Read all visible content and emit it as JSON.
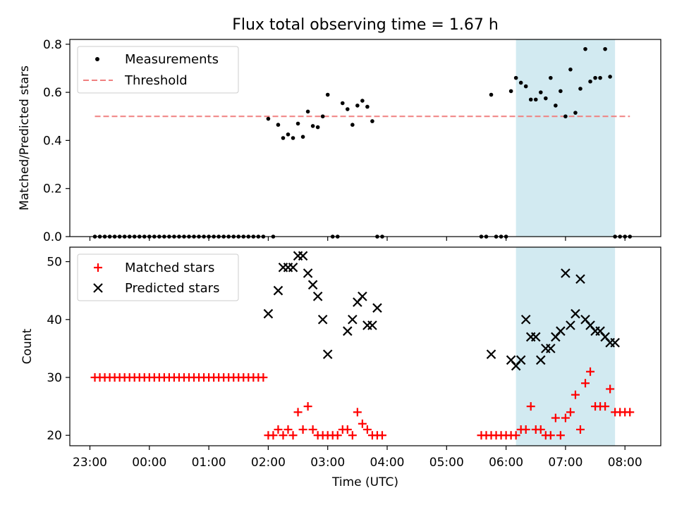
{
  "figure": {
    "title": "Flux total observing time = 1.67 h"
  },
  "chart_data": [
    {
      "type": "scatter",
      "ylabel": "Matched/Predicted stars",
      "xlabel": "",
      "ylim": [
        0,
        0.82
      ],
      "yticks": [
        0.0,
        0.2,
        0.4,
        0.6,
        0.8
      ],
      "ytick_labels": [
        "0.0",
        "0.2",
        "0.4",
        "0.6",
        "0.8"
      ],
      "legend_position": "upper-left",
      "highlight_span": {
        "x0": "06:10",
        "x1": "07:50",
        "color": "#add8e6"
      },
      "series": [
        {
          "name": "Measurements",
          "marker": "dot",
          "color": "#000000",
          "x": [
            "23:05",
            "23:10",
            "23:15",
            "23:20",
            "23:25",
            "23:30",
            "23:35",
            "23:40",
            "23:45",
            "23:50",
            "23:55",
            "00:00",
            "00:05",
            "00:10",
            "00:15",
            "00:20",
            "00:25",
            "00:30",
            "00:35",
            "00:40",
            "00:45",
            "00:50",
            "00:55",
            "01:00",
            "01:05",
            "01:10",
            "01:15",
            "01:20",
            "01:25",
            "01:30",
            "01:35",
            "01:40",
            "01:45",
            "01:50",
            "01:55",
            "02:00",
            "02:05",
            "02:10",
            "02:15",
            "02:20",
            "02:25",
            "02:30",
            "02:35",
            "02:40",
            "02:45",
            "02:50",
            "02:55",
            "03:00",
            "03:05",
            "03:10",
            "03:15",
            "03:20",
            "03:25",
            "03:30",
            "03:35",
            "03:40",
            "03:45",
            "03:50",
            "03:55",
            "05:35",
            "05:40",
            "05:45",
            "05:50",
            "05:55",
            "06:00",
            "06:05",
            "06:10",
            "06:15",
            "06:20",
            "06:25",
            "06:30",
            "06:35",
            "06:40",
            "06:45",
            "06:50",
            "06:55",
            "07:00",
            "07:05",
            "07:10",
            "07:15",
            "07:20",
            "07:25",
            "07:30",
            "07:35",
            "07:40",
            "07:45",
            "07:50",
            "07:55",
            "08:00",
            "08:05"
          ],
          "y": [
            0,
            0,
            0,
            0,
            0,
            0,
            0,
            0,
            0,
            0,
            0,
            0,
            0,
            0,
            0,
            0,
            0,
            0,
            0,
            0,
            0,
            0,
            0,
            0,
            0,
            0,
            0,
            0,
            0,
            0,
            0,
            0,
            0,
            0,
            0,
            0.49,
            0,
            0.465,
            0.41,
            0.425,
            0.41,
            0.47,
            0.415,
            0.52,
            0.46,
            0.455,
            0.5,
            0.59,
            0,
            0,
            0.555,
            0.53,
            0.465,
            0.545,
            0.565,
            0.54,
            0.48,
            0,
            0,
            0,
            0,
            0.59,
            0,
            0,
            0,
            0.605,
            0.66,
            0.64,
            0.625,
            0.57,
            0.57,
            0.6,
            0.575,
            0.66,
            0.545,
            0.605,
            0.5,
            0.695,
            0.515,
            0.615,
            0.78,
            0.645,
            0.66,
            0.66,
            0.78,
            0.665,
            0,
            0,
            0,
            0
          ]
        },
        {
          "name": "Threshold",
          "marker": "dashed-line",
          "color": "#f08080",
          "x": [
            "23:05",
            "08:05"
          ],
          "y": [
            0.5,
            0.5
          ]
        }
      ]
    },
    {
      "type": "scatter",
      "ylabel": "Count",
      "xlabel": "Time (UTC)",
      "ylim": [
        18.2,
        52.5
      ],
      "yticks": [
        20,
        30,
        40,
        50
      ],
      "ytick_labels": [
        "20",
        "30",
        "40",
        "50"
      ],
      "xticks": [
        "23:00",
        "00:00",
        "01:00",
        "02:00",
        "03:00",
        "04:00",
        "05:00",
        "06:00",
        "07:00",
        "08:00"
      ],
      "legend_position": "upper-left",
      "highlight_span": {
        "x0": "06:10",
        "x1": "07:50",
        "color": "#add8e6"
      },
      "series": [
        {
          "name": "Matched stars",
          "marker": "plus",
          "color": "#ff0000",
          "x": [
            "23:05",
            "23:10",
            "23:15",
            "23:20",
            "23:25",
            "23:30",
            "23:35",
            "23:40",
            "23:45",
            "23:50",
            "23:55",
            "00:00",
            "00:05",
            "00:10",
            "00:15",
            "00:20",
            "00:25",
            "00:30",
            "00:35",
            "00:40",
            "00:45",
            "00:50",
            "00:55",
            "01:00",
            "01:05",
            "01:10",
            "01:15",
            "01:20",
            "01:25",
            "01:30",
            "01:35",
            "01:40",
            "01:45",
            "01:50",
            "01:55",
            "02:00",
            "02:05",
            "02:10",
            "02:15",
            "02:20",
            "02:25",
            "02:30",
            "02:35",
            "02:40",
            "02:45",
            "02:50",
            "02:55",
            "03:00",
            "03:05",
            "03:10",
            "03:15",
            "03:20",
            "03:25",
            "03:30",
            "03:35",
            "03:40",
            "03:45",
            "03:50",
            "03:55",
            "05:35",
            "05:40",
            "05:45",
            "05:50",
            "05:55",
            "06:00",
            "06:05",
            "06:10",
            "06:15",
            "06:20",
            "06:25",
            "06:30",
            "06:35",
            "06:40",
            "06:45",
            "06:50",
            "06:55",
            "07:00",
            "07:05",
            "07:10",
            "07:15",
            "07:20",
            "07:25",
            "07:30",
            "07:35",
            "07:40",
            "07:45",
            "07:50",
            "07:55",
            "08:00",
            "08:05"
          ],
          "y": [
            30,
            30,
            30,
            30,
            30,
            30,
            30,
            30,
            30,
            30,
            30,
            30,
            30,
            30,
            30,
            30,
            30,
            30,
            30,
            30,
            30,
            30,
            30,
            30,
            30,
            30,
            30,
            30,
            30,
            30,
            30,
            30,
            30,
            30,
            30,
            20,
            20,
            21,
            20,
            21,
            20,
            24,
            21,
            25,
            21,
            20,
            20,
            20,
            20,
            20,
            21,
            21,
            20,
            24,
            22,
            21,
            20,
            20,
            20,
            20,
            20,
            20,
            20,
            20,
            20,
            20,
            20,
            21,
            21,
            25,
            21,
            21,
            20,
            20,
            23,
            20,
            23,
            24,
            27,
            21,
            29,
            31,
            25,
            25,
            25,
            28,
            24,
            24,
            24,
            24
          ]
        },
        {
          "name": "Predicted stars",
          "marker": "x",
          "color": "#000000",
          "x": [
            "02:00",
            "02:10",
            "02:15",
            "02:20",
            "02:25",
            "02:30",
            "02:35",
            "02:40",
            "02:45",
            "02:50",
            "02:55",
            "03:00",
            "03:20",
            "03:25",
            "03:30",
            "03:35",
            "03:40",
            "03:45",
            "03:50",
            "05:45",
            "06:05",
            "06:10",
            "06:15",
            "06:20",
            "06:25",
            "06:30",
            "06:35",
            "06:40",
            "06:45",
            "06:50",
            "06:55",
            "07:00",
            "07:05",
            "07:10",
            "07:15",
            "07:20",
            "07:25",
            "07:30",
            "07:35",
            "07:40",
            "07:45",
            "07:50"
          ],
          "y": [
            41,
            45,
            49,
            49,
            49,
            51,
            51,
            48,
            46,
            44,
            40,
            34,
            38,
            40,
            43,
            44,
            39,
            39,
            42,
            34,
            33,
            32,
            33,
            40,
            37,
            37,
            33,
            35,
            35,
            37,
            38,
            48,
            39,
            41,
            47,
            40,
            39,
            38,
            38,
            37,
            36,
            36
          ]
        }
      ]
    }
  ]
}
